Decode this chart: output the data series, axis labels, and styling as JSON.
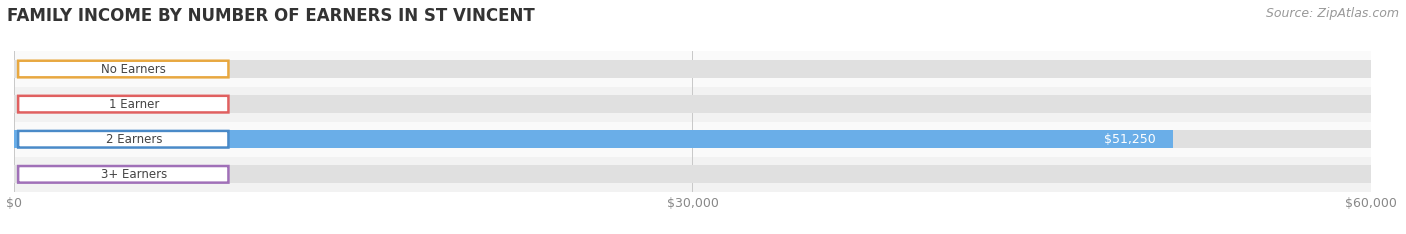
{
  "title": "FAMILY INCOME BY NUMBER OF EARNERS IN ST VINCENT",
  "source": "Source: ZipAtlas.com",
  "categories": [
    "No Earners",
    "1 Earner",
    "2 Earners",
    "3+ Earners"
  ],
  "values": [
    0,
    0,
    51250,
    0
  ],
  "bar_colors": [
    "#f5c080",
    "#f09090",
    "#6aaee8",
    "#c9a8d4"
  ],
  "label_border_colors": [
    "#e8a840",
    "#e06060",
    "#4a8ac8",
    "#a070b8"
  ],
  "bar_bg_color": "#e0e0e0",
  "xlim": [
    0,
    60000
  ],
  "xtick_labels": [
    "$0",
    "$30,000",
    "$60,000"
  ],
  "title_fontsize": 12,
  "source_fontsize": 9,
  "bar_height": 0.52,
  "background_color": "#ffffff",
  "row_bg_even": "#f2f2f2",
  "row_bg_odd": "#fafafa",
  "zero_label_color": "#999999",
  "value_label_color": "#ffffff"
}
